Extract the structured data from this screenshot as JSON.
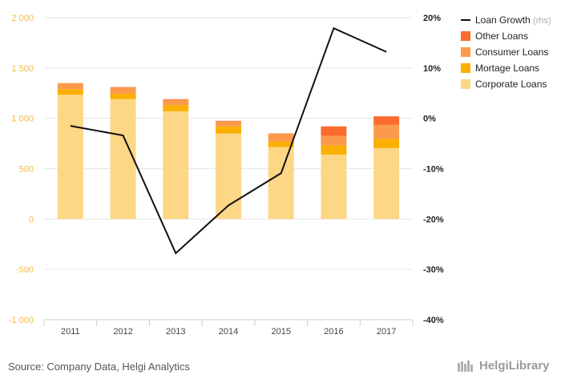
{
  "chart_data": {
    "type": "bar",
    "stacked": true,
    "categories": [
      "2011",
      "2012",
      "2013",
      "2014",
      "2015",
      "2016",
      "2017"
    ],
    "series": [
      {
        "name": "Corporate Loans",
        "values": [
          1235,
          1190,
          1070,
          850,
          715,
          640,
          705
        ],
        "color": "#fdd686"
      },
      {
        "name": "Mortage Loans",
        "values": [
          55,
          55,
          60,
          70,
          55,
          90,
          90
        ],
        "color": "#fbb000"
      },
      {
        "name": "Consumer Loans",
        "values": [
          60,
          60,
          55,
          50,
          75,
          95,
          140
        ],
        "color": "#fb9a4c"
      },
      {
        "name": "Other Loans",
        "values": [
          0,
          5,
          5,
          5,
          5,
          95,
          85
        ],
        "color": "#fa6b2c"
      }
    ],
    "line_series": {
      "name": "Loan Growth",
      "suffix": "(rhs)",
      "axis": "right",
      "values": [
        -1.5,
        -3.4,
        -26.8,
        -17.3,
        -10.9,
        17.9,
        13.2
      ],
      "color": "#111111"
    },
    "ylim_left": [
      -1000,
      2000
    ],
    "yticks_left": [
      "-1 000",
      "-500",
      "0",
      "500",
      "1 000",
      "1 500",
      "2 000"
    ],
    "ylim_right": [
      -40,
      20
    ],
    "yticks_right": [
      "-40%",
      "-30%",
      "-20%",
      "-10%",
      "0%",
      "10%",
      "20%"
    ],
    "grid": true,
    "legend_position": "top-right"
  },
  "footer": {
    "source": "Source: Company Data, Helgi Analytics",
    "logo_text": "HelgiLibrary"
  }
}
